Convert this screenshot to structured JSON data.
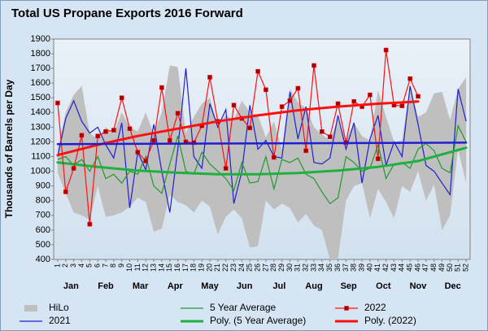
{
  "chart_data": {
    "type": "line",
    "title": "Total US Propane Exports 2016 Forward",
    "y_label": "Thousands of Barrels per Day",
    "x": [
      1,
      2,
      3,
      4,
      5,
      6,
      7,
      8,
      9,
      10,
      11,
      12,
      13,
      14,
      15,
      16,
      17,
      18,
      19,
      20,
      21,
      22,
      23,
      24,
      25,
      26,
      27,
      28,
      29,
      30,
      31,
      32,
      33,
      34,
      35,
      36,
      37,
      38,
      39,
      40,
      41,
      42,
      43,
      44,
      45,
      46,
      47,
      48,
      49,
      50,
      51,
      52
    ],
    "xticks": [
      1,
      2,
      3,
      4,
      5,
      6,
      7,
      8,
      9,
      10,
      11,
      12,
      13,
      14,
      15,
      16,
      17,
      18,
      19,
      20,
      21,
      22,
      23,
      24,
      25,
      26,
      27,
      28,
      29,
      30,
      31,
      32,
      33,
      34,
      35,
      36,
      37,
      38,
      39,
      40,
      41,
      42,
      43,
      44,
      45,
      46,
      47,
      48,
      49,
      50,
      51,
      52
    ],
    "xlim": [
      0.5,
      52.5
    ],
    "month_labels": [
      "Jan",
      "Feb",
      "Mar",
      "Apr",
      "May",
      "Jun",
      "Jul",
      "Aug",
      "Sep",
      "Oct",
      "Nov",
      "Dec"
    ],
    "ylim": [
      400,
      1900
    ],
    "yticks": [
      400,
      500,
      600,
      700,
      800,
      900,
      1000,
      1100,
      1200,
      1300,
      1400,
      1500,
      1600,
      1700,
      1800,
      1900
    ],
    "grid": false,
    "legend_position": "bottom",
    "series": [
      {
        "name": "HiLo",
        "kind": "range",
        "color": "#bfbfbf",
        "hi": [
          1150,
          1400,
          1520,
          1580,
          1260,
          1220,
          1300,
          1260,
          1400,
          1300,
          1270,
          1400,
          1250,
          1400,
          1720,
          1710,
          1260,
          1370,
          1460,
          1500,
          1310,
          1380,
          1350,
          1480,
          1400,
          1380,
          1230,
          1340,
          1150,
          1560,
          1470,
          1430,
          1300,
          1250,
          1210,
          1360,
          1210,
          1330,
          1240,
          1210,
          1550,
          1370,
          1200,
          1210,
          1580,
          1370,
          1400,
          1530,
          1540,
          1350,
          1560,
          1640
        ],
        "lo": [
          990,
          850,
          720,
          700,
          670,
          900,
          690,
          700,
          720,
          760,
          820,
          790,
          590,
          610,
          840,
          790,
          770,
          720,
          800,
          760,
          570,
          690,
          740,
          680,
          480,
          490,
          800,
          740,
          780,
          750,
          650,
          710,
          630,
          600,
          400,
          400,
          800,
          900,
          920,
          680,
          880,
          790,
          680,
          900,
          860,
          1000,
          800,
          910,
          600,
          700,
          1150,
          920
        ]
      },
      {
        "name": "2021",
        "kind": "line",
        "color": "#1f1fd0",
        "width": 1.2,
        "values": [
          1100,
          1360,
          1480,
          1340,
          1260,
          1300,
          1180,
          1090,
          1330,
          750,
          1130,
          1010,
          1320,
          1000,
          720,
          1150,
          1700,
          1100,
          1020,
          1460,
          1300,
          1420,
          780,
          1000,
          1450,
          1150,
          1210,
          1100,
          1090,
          1540,
          1220,
          1440,
          1060,
          1050,
          1090,
          1380,
          1150,
          1330,
          920,
          1220,
          1380,
          1040,
          1200,
          1100,
          1580,
          1320,
          1040,
          1000,
          920,
          840,
          1560,
          1340
        ]
      },
      {
        "name": "5 Year Average",
        "kind": "line",
        "color": "#1f9a2f",
        "width": 1.2,
        "values": [
          1080,
          1100,
          1040,
          1080,
          1000,
          1100,
          950,
          980,
          920,
          1000,
          980,
          1100,
          900,
          850,
          1050,
          1240,
          1000,
          980,
          1130,
          1050,
          1000,
          950,
          870,
          1060,
          920,
          930,
          1100,
          880,
          1080,
          1060,
          1090,
          980,
          950,
          860,
          780,
          820,
          1100,
          1060,
          1000,
          1020,
          1180,
          950,
          1050,
          1060,
          1020,
          1150,
          1190,
          1140,
          1020,
          990,
          1310,
          1200
        ]
      },
      {
        "name": "Poly. (5 Year Average)",
        "kind": "trend",
        "color": "#1fb040",
        "width": 3,
        "x": [
          1,
          6,
          11,
          16,
          21,
          26,
          31,
          36,
          41,
          46,
          52
        ],
        "values": [
          1060,
          1030,
          1005,
          990,
          980,
          980,
          988,
          1005,
          1030,
          1070,
          1160
        ]
      },
      {
        "name": "2022",
        "kind": "marker-line",
        "color": "#ff1010",
        "marker_color": "#a00000",
        "width": 1.2,
        "values": [
          1465,
          860,
          1020,
          1245,
          640,
          1240,
          1270,
          1280,
          1500,
          1290,
          1130,
          1070,
          1210,
          1570,
          1210,
          1395,
          1200,
          1195,
          1310,
          1640,
          1340,
          1020,
          1450,
          1360,
          1295,
          1680,
          1555,
          1095,
          1440,
          1480,
          1565,
          1140,
          1720,
          1270,
          1235,
          1460,
          1195,
          1475,
          1440,
          1520,
          1085,
          1825,
          1450,
          1445,
          1630,
          1510,
          null,
          null,
          null,
          null,
          null,
          null
        ]
      },
      {
        "name": "Poly. (2022)",
        "kind": "trend",
        "color": "#ff1010",
        "width": 3,
        "x": [
          1,
          6,
          11,
          16,
          21,
          26,
          31,
          36,
          41,
          46
        ],
        "values": [
          1110,
          1180,
          1240,
          1290,
          1340,
          1380,
          1415,
          1440,
          1460,
          1475
        ]
      },
      {
        "kind": "trend",
        "color": "#1f1fd0",
        "width": 2.5,
        "x": [
          1,
          52
        ],
        "values": [
          1185,
          1195
        ]
      }
    ]
  }
}
